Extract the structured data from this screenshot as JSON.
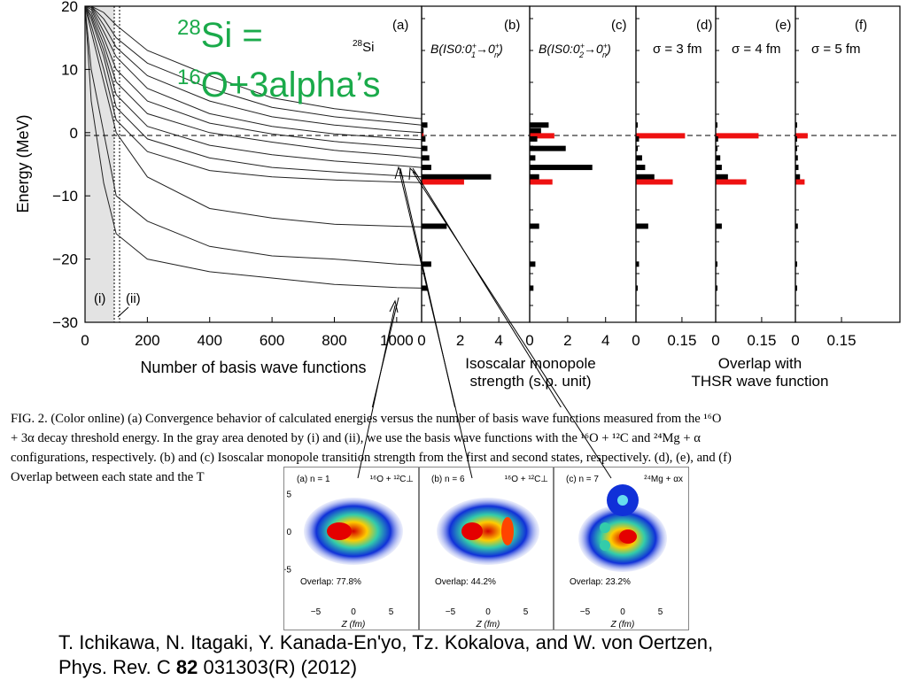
{
  "overlay_title": {
    "line1_sup": "28",
    "line1_rest": "Si =",
    "line2_sup": "16",
    "line2_rest": "O+3alpha’s"
  },
  "panel_a": {
    "label": "(a)",
    "nucleus_sup": "28",
    "nucleus": "Si",
    "ylabel": "Energy (MeV)",
    "xlabel": "Number of basis wave functions",
    "yticks": [
      "20",
      "10",
      "0",
      "−10",
      "−20",
      "−30"
    ],
    "xticks": [
      "0",
      "200",
      "400",
      "600",
      "800",
      "1000"
    ],
    "region_i": "(i)",
    "region_ii": "(ii)"
  },
  "panel_b": {
    "label": "(b)",
    "title_pre": "B(IS0:0",
    "title_a": "+",
    "title_b": "1",
    "title_mid": "→0",
    "title_c": "+",
    "title_d": "n",
    "title_post": ")",
    "xticks": [
      "0",
      "2",
      "4"
    ]
  },
  "panel_c": {
    "label": "(c)",
    "title_pre": "B(IS0:0",
    "title_a": "+",
    "title_b": "2",
    "title_mid": "→0",
    "title_c": "+",
    "title_d": "n",
    "title_post": ")",
    "xticks": [
      "0",
      "2",
      "4"
    ]
  },
  "panel_d": {
    "label": "(d)",
    "sigma": "σ = 3 fm",
    "xticks": [
      "0",
      "0.15"
    ]
  },
  "panel_e": {
    "label": "(e)",
    "sigma": "σ = 4 fm",
    "xticks": [
      "0",
      "0.15"
    ]
  },
  "panel_f": {
    "label": "(f)",
    "sigma": "σ = 5 fm",
    "xticks": [
      "0",
      "0.15"
    ]
  },
  "bc_xlabel": {
    "line1": "Isoscalar monopole",
    "line2": "strength (s.p. unit)"
  },
  "def_xlabel": {
    "line1": "Overlap with",
    "line2": "THSR wave function"
  },
  "colors": {
    "highlight": "#ee1111",
    "bar": "#000000",
    "green": "#1aaa4a",
    "gray": "#e3e3e3"
  },
  "caption": {
    "line1": "FIG. 2.  (Color online) (a) Convergence behavior of calculated energies versus the number of basis wave functions measured from the ¹⁶O",
    "line2": "+ 3α decay threshold energy.  In the gray area denoted by (i) and (ii), we use the basis wave functions with the ¹⁶O + ¹²C and ²⁴Mg + α",
    "line3": "configurations, respectively. (b) and (c) Isoscalar monopole transition strength from the first and second states, respectively. (d), (e), and (f)",
    "line4": "Overlap between each state and the T"
  },
  "insets": [
    {
      "label": "(a) n = 1",
      "config": "¹⁶O + ¹²C⊥",
      "overlap": "Overlap: 77.8%"
    },
    {
      "label": "(b) n = 6",
      "config": "¹⁶O + ¹²C⊥",
      "overlap": "Overlap: 44.2%"
    },
    {
      "label": "(c) n = 7",
      "config": "²⁴Mg + αx",
      "overlap": "Overlap: 23.2%"
    }
  ],
  "inset_axes": {
    "ylabel": "X (fm)",
    "xlabel": "Z (fm)",
    "yticks": [
      "5",
      "0",
      "−5"
    ],
    "xticks": [
      "−5",
      "0",
      "5"
    ]
  },
  "chart_data": {
    "type": "line",
    "title": "",
    "xlabel": "Number of basis wave functions",
    "ylabel": "Energy (MeV)",
    "xlim": [
      0,
      1080
    ],
    "ylim": [
      -30,
      20
    ],
    "series": [
      {
        "x": [
          0,
          20,
          60,
          100,
          200,
          400,
          600,
          800,
          1000,
          1080
        ],
        "values": [
          20,
          10,
          0,
          -10,
          -14,
          -18,
          -19.5,
          -20,
          -20.8,
          -21
        ]
      },
      {
        "x": [
          0,
          20,
          60,
          100,
          200,
          400,
          600,
          800,
          1000,
          1080
        ],
        "values": [
          20,
          5,
          -8,
          -16,
          -20,
          -22,
          -23,
          -24,
          -24.5,
          -24.6
        ]
      },
      {
        "x": [
          0,
          20,
          60,
          100,
          200,
          400,
          600,
          800,
          1000,
          1080
        ],
        "values": [
          20,
          16,
          8,
          0,
          -7,
          -12,
          -13.5,
          -14.5,
          -14.8,
          -14.9
        ]
      },
      {
        "x": [
          0,
          20,
          60,
          100,
          200,
          400,
          600,
          800,
          1000,
          1080
        ],
        "values": [
          20,
          17,
          10,
          2,
          -3,
          -6,
          -7,
          -7.5,
          -7.8,
          -7.9
        ]
      },
      {
        "x": [
          0,
          20,
          60,
          100,
          200,
          400,
          600,
          800,
          1000,
          1080
        ],
        "values": [
          20,
          18,
          12,
          4,
          -1,
          -4,
          -5.5,
          -6.2,
          -6.8,
          -7
        ]
      },
      {
        "x": [
          0,
          20,
          60,
          100,
          200,
          400,
          600,
          800,
          1000,
          1080
        ],
        "values": [
          20,
          18.5,
          13,
          6,
          1,
          -2,
          -3.5,
          -4.5,
          -5.2,
          -5.5
        ]
      },
      {
        "x": [
          0,
          20,
          60,
          100,
          200,
          400,
          600,
          800,
          1000,
          1080
        ],
        "values": [
          20,
          19,
          14,
          8,
          3,
          0,
          -1.5,
          -2.8,
          -3.6,
          -4
        ]
      },
      {
        "x": [
          0,
          20,
          60,
          100,
          200,
          400,
          600,
          800,
          1000,
          1080
        ],
        "values": [
          20,
          19.5,
          15,
          10,
          5,
          1.5,
          -0.2,
          -1.4,
          -2.2,
          -2.5
        ]
      },
      {
        "x": [
          0,
          20,
          60,
          100,
          200,
          400,
          600,
          800,
          1000,
          1080
        ],
        "values": [
          20,
          19.8,
          16,
          12,
          7,
          3,
          1,
          -0.2,
          -0.9,
          -1.1
        ]
      },
      {
        "x": [
          0,
          20,
          60,
          100,
          200,
          400,
          600,
          800,
          1000,
          1080
        ],
        "values": [
          20,
          20,
          17,
          13.5,
          9,
          5,
          2.5,
          1.2,
          0.3,
          0
        ]
      },
      {
        "x": [
          0,
          20,
          60,
          100,
          200,
          400,
          600,
          800,
          1000,
          1080
        ],
        "values": [
          20,
          20,
          18,
          15,
          11,
          7,
          4,
          2.5,
          1.6,
          1.2
        ]
      },
      {
        "x": [
          0,
          20,
          60,
          100,
          200,
          400,
          600,
          800,
          1000,
          1080
        ],
        "values": [
          20,
          20,
          19,
          17,
          13,
          9,
          5.5,
          3.8,
          2.6,
          2.2
        ]
      }
    ],
    "threshold_y": 0,
    "grid": false
  },
  "bars": {
    "levels": [
      1.2,
      0.3,
      -0.5,
      -1,
      -2.5,
      -4,
      -5.5,
      -7,
      -7.8,
      -14.8,
      -20.8,
      -24.6
    ],
    "b": [
      0.3,
      0.1,
      0.1,
      0.2,
      0.3,
      0.4,
      0.5,
      3.6,
      2.2,
      1.3,
      0.5,
      0.3
    ],
    "b_red": [
      false,
      false,
      true,
      false,
      false,
      false,
      false,
      false,
      true,
      false,
      false,
      false
    ],
    "c": [
      1.0,
      0.6,
      1.3,
      0.4,
      1.9,
      0.3,
      3.3,
      0.5,
      1.2,
      0.5,
      0.3,
      0.2
    ],
    "c_red": [
      false,
      false,
      true,
      false,
      false,
      false,
      false,
      false,
      true,
      false,
      false,
      false
    ],
    "d": [
      0.005,
      0.0,
      0.16,
      0.01,
      0.005,
      0.02,
      0.03,
      0.06,
      0.12,
      0.04,
      0.01,
      0.005
    ],
    "d_red": [
      false,
      false,
      true,
      false,
      false,
      false,
      false,
      false,
      true,
      false,
      false,
      false
    ],
    "e": [
      0.003,
      0.0,
      0.14,
      0.008,
      0.004,
      0.015,
      0.02,
      0.04,
      0.1,
      0.02,
      0.005,
      0.003
    ],
    "e_red": [
      false,
      false,
      true,
      false,
      false,
      false,
      false,
      false,
      true,
      false,
      false,
      false
    ],
    "f": [
      0.002,
      0.0,
      0.04,
      0.004,
      0.002,
      0.008,
      0.01,
      0.015,
      0.03,
      0.008,
      0.002,
      0.001
    ],
    "f_red": [
      false,
      false,
      true,
      false,
      false,
      false,
      false,
      false,
      true,
      false,
      false,
      false
    ]
  },
  "reference": {
    "line1": "T. Ichikawa, N. Itagaki, Y. Kanada-En'yo, Tz. Kokalova, and W. von Oertzen,",
    "line2_pre": "Phys. Rev. C ",
    "line2_bold": "82",
    "line2_post": " 031303(R) (2012)"
  }
}
